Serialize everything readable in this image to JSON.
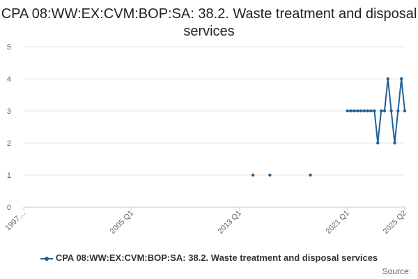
{
  "colors": {
    "series": "#206095",
    "grid": "#e6e6e6",
    "axis_text": "#666666",
    "title": "#222222"
  },
  "legend_position": "bottom",
  "source_label": "Source:",
  "chart_data": {
    "type": "line",
    "title": "CPA 08:WW:EX:CVM:BOP:SA: 38.2. Waste treatment and disposal services",
    "xlabel": "",
    "ylabel": "",
    "grid": true,
    "ylim": [
      0,
      5
    ],
    "yticks": [
      0,
      1,
      2,
      3,
      4,
      5
    ],
    "xlim": [
      "1997 Q1",
      "2025 Q2"
    ],
    "xtick_labels": [
      "1997…",
      "2005 Q1",
      "2013 Q1",
      "2021 Q1",
      "2025 Q2"
    ],
    "xtick_quarters": [
      "1997 Q1",
      "2005 Q1",
      "2013 Q1",
      "2021 Q1",
      "2025 Q2"
    ],
    "series": [
      {
        "name": "CPA 08:WW:EX:CVM:BOP:SA: 38.2. Waste treatment and disposal services",
        "points": [
          [
            "2014 Q1",
            1
          ],
          [
            "2015 Q2",
            1
          ],
          [
            "2018 Q2",
            1
          ],
          [
            "2021 Q1",
            3
          ],
          [
            "2021 Q2",
            3
          ],
          [
            "2021 Q3",
            3
          ],
          [
            "2021 Q4",
            3
          ],
          [
            "2022 Q1",
            3
          ],
          [
            "2022 Q2",
            3
          ],
          [
            "2022 Q3",
            3
          ],
          [
            "2022 Q4",
            3
          ],
          [
            "2023 Q1",
            3
          ],
          [
            "2023 Q2",
            2
          ],
          [
            "2023 Q3",
            3
          ],
          [
            "2023 Q4",
            3
          ],
          [
            "2024 Q1",
            4
          ],
          [
            "2024 Q2",
            3
          ],
          [
            "2024 Q3",
            2
          ],
          [
            "2024 Q4",
            3
          ],
          [
            "2025 Q1",
            4
          ],
          [
            "2025 Q2",
            3
          ]
        ]
      }
    ]
  }
}
